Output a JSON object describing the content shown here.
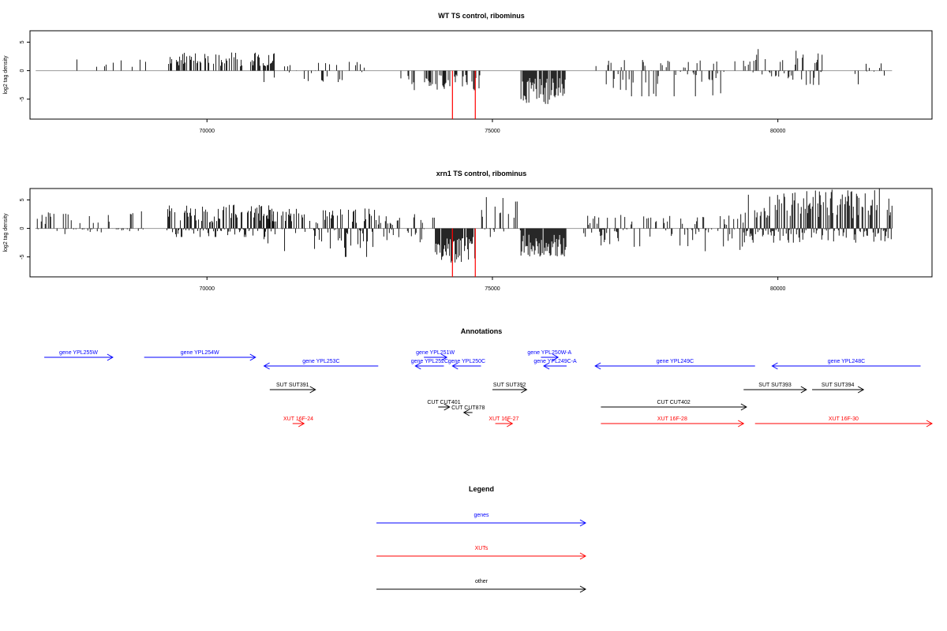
{
  "colors": {
    "signal": "#000000",
    "highlight": "#ff0000",
    "genes": "#0000ff",
    "xuts": "#ff0000",
    "other": "#000000",
    "baseline": "#999999"
  },
  "chart_data": [
    {
      "type": "bar",
      "title": "WT TS control, ribominus",
      "xlabel": "",
      "ylabel": "log2 tag density",
      "xlim": [
        66900,
        82700
      ],
      "ylim": [
        -8.5,
        7
      ],
      "xticks": [
        70000,
        75000,
        80000
      ],
      "yticks": [
        -5,
        0,
        5
      ],
      "grid": false,
      "segments": [
        {
          "from": 67000,
          "to": 82000,
          "value": 0,
          "note": "baseline"
        }
      ],
      "density_regions": [
        {
          "start": 67350,
          "end": 67400,
          "min": -2.5,
          "max": 0,
          "density": 0.3
        },
        {
          "start": 67500,
          "end": 69000,
          "min": 0,
          "max": 2.5,
          "density": 0.15
        },
        {
          "start": 69300,
          "end": 71200,
          "min": 0,
          "max": 3.2,
          "density": 0.5
        },
        {
          "start": 71000,
          "end": 72800,
          "min": -2,
          "max": 1.6,
          "density": 0.25
        },
        {
          "start": 73300,
          "end": 74800,
          "min": -3.5,
          "max": 0,
          "density": 0.3
        },
        {
          "start": 75500,
          "end": 76300,
          "min": -6,
          "max": 0,
          "density": 0.9
        },
        {
          "start": 76800,
          "end": 79600,
          "min": -4.5,
          "max": 2,
          "density": 0.3
        },
        {
          "start": 79600,
          "end": 80800,
          "min": -2.5,
          "max": 3.8,
          "density": 0.5
        },
        {
          "start": 81200,
          "end": 82000,
          "min": -2.5,
          "max": 1.8,
          "density": 0.15
        }
      ],
      "highlights": [
        {
          "x": 74300,
          "value": -8.5
        },
        {
          "x": 74700,
          "value": -8.5
        }
      ]
    },
    {
      "type": "bar",
      "title": "xrn1 TS control, ribominus",
      "xlabel": "",
      "ylabel": "log2 tag density",
      "xlim": [
        66900,
        82700
      ],
      "ylim": [
        -8.5,
        7
      ],
      "xticks": [
        70000,
        75000,
        80000
      ],
      "yticks": [
        -5,
        0,
        5
      ],
      "grid": false,
      "density_regions": [
        {
          "start": 67000,
          "end": 69000,
          "min": -1,
          "max": 3,
          "density": 0.4
        },
        {
          "start": 69300,
          "end": 71200,
          "min": -1.5,
          "max": 4.2,
          "density": 0.9
        },
        {
          "start": 71000,
          "end": 73000,
          "min": -5,
          "max": 3.5,
          "density": 0.55
        },
        {
          "start": 73000,
          "end": 74000,
          "min": -2.5,
          "max": 2.5,
          "density": 0.35
        },
        {
          "start": 74000,
          "end": 74700,
          "min": -6.2,
          "max": 0,
          "density": 0.95
        },
        {
          "start": 74700,
          "end": 75500,
          "min": -1.5,
          "max": 5.5,
          "density": 0.4
        },
        {
          "start": 75500,
          "end": 76300,
          "min": -5,
          "max": 0,
          "density": 0.95
        },
        {
          "start": 76600,
          "end": 79400,
          "min": -4,
          "max": 2.5,
          "density": 0.45
        },
        {
          "start": 79400,
          "end": 82000,
          "min": -2.5,
          "max": 7,
          "density": 0.95
        }
      ],
      "highlights": [
        {
          "x": 74300,
          "value": -8.5
        },
        {
          "x": 74700,
          "value": -8.5
        }
      ]
    }
  ],
  "annotations": {
    "title": "Annotations",
    "features": [
      {
        "label": "gene YPL255W",
        "start": 67150,
        "end": 68350,
        "strand": "+",
        "kind": "genes",
        "row": 0
      },
      {
        "label": "gene YPL254W",
        "start": 68900,
        "end": 70850,
        "strand": "+",
        "kind": "genes",
        "row": 0
      },
      {
        "label": "gene YPL253C",
        "start": 71000,
        "end": 73000,
        "strand": "-",
        "kind": "genes",
        "row": 1
      },
      {
        "label": "gene YPL251W",
        "start": 73800,
        "end": 74200,
        "strand": "+",
        "kind": "genes",
        "row": 0
      },
      {
        "label": "gene YPL252C",
        "start": 73650,
        "end": 74150,
        "strand": "-",
        "kind": "genes",
        "row": 1
      },
      {
        "label": "gene YPL250C",
        "start": 74300,
        "end": 74800,
        "strand": "-",
        "kind": "genes",
        "row": 1
      },
      {
        "label": "gene YPL250W-A",
        "start": 75850,
        "end": 76150,
        "strand": "+",
        "kind": "genes",
        "row": 0
      },
      {
        "label": "gene YPL249C-A",
        "start": 75900,
        "end": 76300,
        "strand": "-",
        "kind": "genes",
        "row": 1
      },
      {
        "label": "gene YPL249C",
        "start": 76800,
        "end": 79600,
        "strand": "-",
        "kind": "genes",
        "row": 1
      },
      {
        "label": "gene YPL248C",
        "start": 79900,
        "end": 82500,
        "strand": "-",
        "kind": "genes",
        "row": 1
      },
      {
        "label": "SUT SUT391",
        "start": 71100,
        "end": 71900,
        "strand": "+",
        "kind": "other",
        "row": 2
      },
      {
        "label": "SUT SUT392",
        "start": 75000,
        "end": 75600,
        "strand": "+",
        "kind": "other",
        "row": 2
      },
      {
        "label": "SUT SUT393",
        "start": 79400,
        "end": 80500,
        "strand": "+",
        "kind": "other",
        "row": 2
      },
      {
        "label": "SUT SUT394",
        "start": 80600,
        "end": 81500,
        "strand": "+",
        "kind": "other",
        "row": 2
      },
      {
        "label": "CUT CUT401",
        "start": 74050,
        "end": 74250,
        "strand": "+",
        "kind": "other",
        "row": 3
      },
      {
        "label": "CUT CUT878",
        "start": 74500,
        "end": 74650,
        "strand": "-",
        "kind": "other",
        "row": 3.5
      },
      {
        "label": "CUT CUT402",
        "start": 76900,
        "end": 79450,
        "strand": "+",
        "kind": "other",
        "row": 3
      },
      {
        "label": "XUT 16F-24",
        "start": 71500,
        "end": 71700,
        "strand": "+",
        "kind": "xuts",
        "row": 4
      },
      {
        "label": "XUT 16F-27",
        "start": 75050,
        "end": 75350,
        "strand": "+",
        "kind": "xuts",
        "row": 4
      },
      {
        "label": "XUT 16F-28",
        "start": 76900,
        "end": 79400,
        "strand": "+",
        "kind": "xuts",
        "row": 4
      },
      {
        "label": "XUT 16F-30",
        "start": 79600,
        "end": 82700,
        "strand": "+",
        "kind": "xuts",
        "row": 4
      }
    ]
  },
  "legend": {
    "title": "Legend",
    "items": [
      {
        "label": "genes",
        "kind": "genes"
      },
      {
        "label": "XUTs",
        "kind": "xuts"
      },
      {
        "label": "other",
        "kind": "other"
      }
    ]
  }
}
